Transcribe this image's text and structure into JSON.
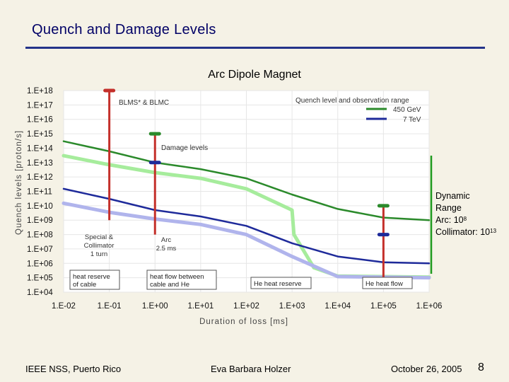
{
  "slide": {
    "title": "Quench and Damage Levels",
    "footer_left": "IEEE NSS, Puerto Rico",
    "footer_center": "Eva Barbara Holzer",
    "footer_right": "October 26, 2005",
    "page_number": "8"
  },
  "side_annotation": {
    "line1": "Dynamic",
    "line2": "Range",
    "arc_label": "Arc: 10",
    "arc_exp": "8",
    "coll_label": "Collimator: 10",
    "coll_exp": "13"
  },
  "colors": {
    "green_dark": "#2b8a2b",
    "green_light": "#a6ec9c",
    "blue_dark": "#1e2a9a",
    "blue_light": "#b0b4ec",
    "red": "#c4302b",
    "bracket": "#1f9a1f"
  },
  "chart_data": {
    "type": "line",
    "title": "Arc Dipole Magnet",
    "xlabel": "Duration of loss [ms]",
    "ylabel": "Quench levels [proton/s]",
    "x_scale": "log",
    "y_scale": "log",
    "xlim": [
      0.01,
      1000000
    ],
    "ylim": [
      10000,
      1e+18
    ],
    "grid": true,
    "legend": "top-right",
    "x_ticks": [
      "1.E-02",
      "1.E-01",
      "1.E+00",
      "1.E+01",
      "1.E+02",
      "1.E+03",
      "1.E+04",
      "1.E+05",
      "1.E+06"
    ],
    "y_ticks": [
      "1.E+04",
      "1.E+05",
      "1.E+06",
      "1.E+07",
      "1.E+08",
      "1.E+09",
      "1.E+10",
      "1.E+11",
      "1.E+12",
      "1.E+13",
      "1.E+14",
      "1.E+15",
      "1.E+16",
      "1.E+17",
      "1.E+18"
    ],
    "legend_title": "Quench level and observation range",
    "series": [
      {
        "name": "450 GeV",
        "color": "#2b8a2b",
        "points": [
          [
            0.01,
            300000000000000.0
          ],
          [
            0.1,
            60000000000000.0
          ],
          [
            1,
            10000000000000.0
          ],
          [
            10,
            3500000000000.0
          ],
          [
            100,
            800000000000.0
          ],
          [
            1000,
            60000000000.0
          ],
          [
            10000,
            6000000000.0
          ],
          [
            100000,
            1500000000.0
          ],
          [
            1000000,
            1000000000.0
          ]
        ]
      },
      {
        "name": "450 GeV observation range",
        "color": "#a6ec9c",
        "points": [
          [
            0.01,
            30000000000000.0
          ],
          [
            0.1,
            7000000000000.0
          ],
          [
            1,
            2000000000000.0
          ],
          [
            10,
            800000000000.0
          ],
          [
            100,
            150000000000.0
          ],
          [
            1000,
            5000000000.0
          ],
          [
            1100,
            100000000.0
          ],
          [
            3000,
            500000.0
          ],
          [
            10000,
            130000.0
          ],
          [
            100000,
            120000.0
          ],
          [
            1000000,
            110000.0
          ]
        ]
      },
      {
        "name": "7 TeV",
        "color": "#1e2a9a",
        "points": [
          [
            0.01,
            150000000000.0
          ],
          [
            0.1,
            30000000000.0
          ],
          [
            1,
            5000000000.0
          ],
          [
            10,
            1800000000.0
          ],
          [
            100,
            400000000.0
          ],
          [
            1000,
            25000000.0
          ],
          [
            10000,
            3000000.0
          ],
          [
            100000,
            1200000.0
          ],
          [
            1000000,
            1000000.0
          ]
        ]
      },
      {
        "name": "7 TeV observation range",
        "color": "#b0b4ec",
        "points": [
          [
            0.01,
            15000000000.0
          ],
          [
            0.1,
            3500000000.0
          ],
          [
            1,
            1200000000.0
          ],
          [
            10,
            500000000.0
          ],
          [
            100,
            100000000.0
          ],
          [
            1000,
            3000000.0
          ],
          [
            10000,
            120000.0
          ],
          [
            100000,
            110000.0
          ],
          [
            1000000,
            100000.0
          ]
        ]
      }
    ],
    "red_bars": [
      {
        "x": 0.1,
        "from": 1000000000.0,
        "to": 1e+18
      },
      {
        "x": 1,
        "from": 100000000.0,
        "to": 1000000000000000.0
      },
      {
        "x": 100000,
        "from": 100000.0,
        "to": 10000000000.0
      }
    ],
    "markers": [
      {
        "x": 0.1,
        "y": 1e+18,
        "color": "#c4302b"
      },
      {
        "x": 1,
        "y": 1000000000000000.0,
        "color": "#2b8a2b"
      },
      {
        "x": 1,
        "y": 10000000000000.0,
        "color": "#1e2a9a"
      },
      {
        "x": 100000,
        "y": 10000000000.0,
        "color": "#2b8a2b"
      },
      {
        "x": 100000,
        "y": 100000000.0,
        "color": "#1e2a9a"
      }
    ],
    "annotations": {
      "blms": "BLMS* & BLMC",
      "damage": "Damage levels",
      "special1": "Special &",
      "special2": "Collimator",
      "special3": "1 turn",
      "arc1": "Arc",
      "arc2": "2.5 ms"
    },
    "boxes": [
      {
        "line1": "heat reserve",
        "line2": "of cable"
      },
      {
        "line1": "heat flow between",
        "line2": "cable and He"
      },
      {
        "line1": "He heat reserve",
        "line2": ""
      },
      {
        "line1": "He heat flow",
        "line2": ""
      }
    ]
  }
}
